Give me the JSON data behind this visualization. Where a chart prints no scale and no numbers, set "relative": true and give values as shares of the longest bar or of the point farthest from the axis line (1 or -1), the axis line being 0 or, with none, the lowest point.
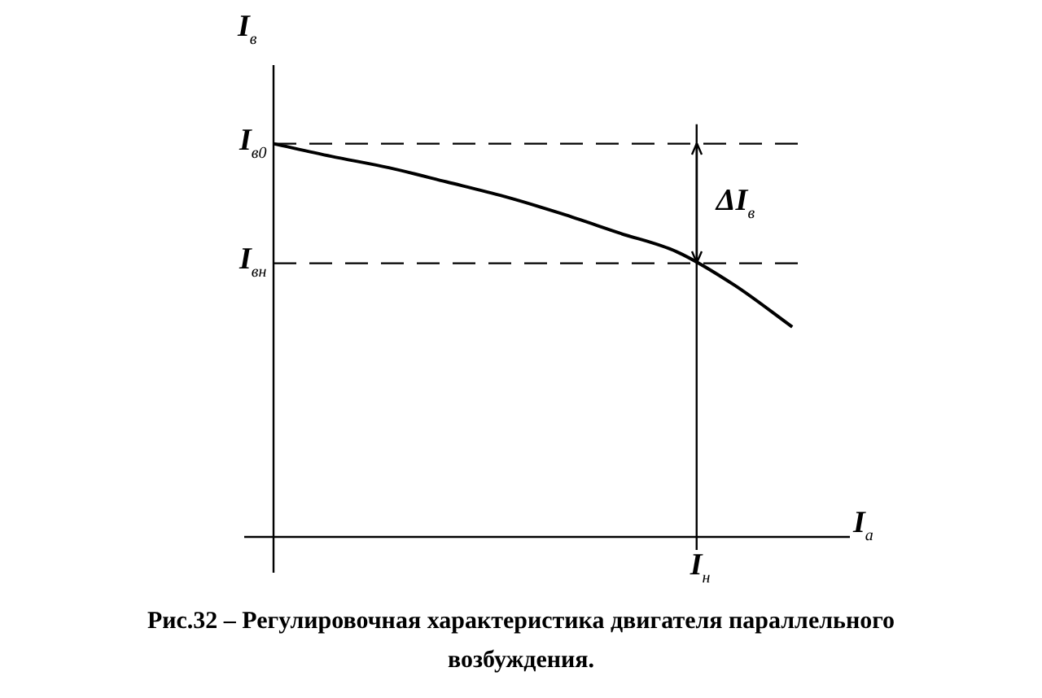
{
  "chart_data": {
    "type": "line",
    "relative": true,
    "ylabel": "I$_{в}$",
    "xlabel": "I$_{а}$",
    "categories": [
      null,
      null,
      null,
      null,
      null,
      null,
      null,
      null,
      null,
      null,
      null
    ],
    "series": [
      {
        "color": "#000000",
        "values": [
          1,
          0.968,
          0.939,
          0.903,
          0.866,
          0.822,
          0.773,
          0.725,
          0.64,
          0.534,
          null
        ]
      }
    ],
    "ref_lines": [
      {
        "axis": "y",
        "value": 1,
        "label": "I$_{в0}$",
        "line_style": "dashed",
        "color": "#000000"
      },
      {
        "axis": "y",
        "value": 0.696,
        "label": "I$_{вн}$",
        "line_style": "dashed",
        "color": "#000000"
      }
    ],
    "annotations": [
      "I$_{н}$",
      "ΔI$_{в}$",
      "Рис.32 – Регулировочная характеристика двигателя параллельного возбуждения."
    ],
    "marker": "none",
    "line_style": "solid",
    "legend": false
  }
}
